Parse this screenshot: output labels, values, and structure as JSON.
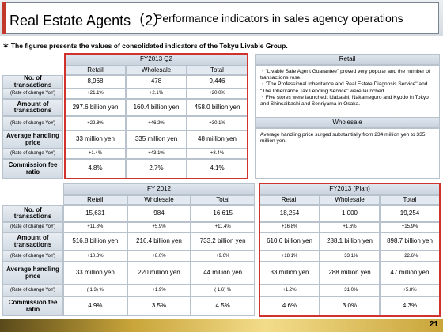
{
  "header": {
    "title": "Real Estate Agents（2）",
    "subtitle": "Performance indicators in sales agency operations"
  },
  "note": "＊ The figures presents the values of consolidated indicators of the Tokyu Livable Group.",
  "row_labels": [
    "No. of transactions",
    "(Rate of change YoY)",
    "Amount of transactions",
    "(Rate of change YoY)",
    "Average handling price",
    "(Rate of change YoY)",
    "Commission fee ratio"
  ],
  "tables": [
    {
      "title": "FY2013 Q2",
      "columns": [
        "Retail",
        "Wholesale",
        "Total"
      ],
      "rows": [
        [
          "8,968",
          "478",
          "9,446"
        ],
        [
          "+21.1%",
          "+2.1%",
          "+20.0%"
        ],
        [
          "297.6 billion yen",
          "160.4 billion yen",
          "458.0 billion yen"
        ],
        [
          "+22.8%",
          "+46.2%",
          "+30.1%"
        ],
        [
          "33 million yen",
          "335 million yen",
          "48 million yen"
        ],
        [
          "+1.4%",
          "+43.1%",
          "+8.4%"
        ],
        [
          "4.8%",
          "2.7%",
          "4.1%"
        ]
      ]
    },
    {
      "title": "FY 2012",
      "columns": [
        "Retail",
        "Wholesale",
        "Total"
      ],
      "rows": [
        [
          "15,631",
          "984",
          "16,615"
        ],
        [
          "+11.8%",
          "+5.9%",
          "+11.4%"
        ],
        [
          "516.8 billion yen",
          "216.4 billion yen",
          "733.2 billion yen"
        ],
        [
          "+10.3%",
          "+8.0%",
          "+9.6%"
        ],
        [
          "33 million yen",
          "220 million yen",
          "44 million yen"
        ],
        [
          "( 1.3) %",
          "+1.9%",
          "( 1.6) %"
        ],
        [
          "4.9%",
          "3.5%",
          "4.5%"
        ]
      ]
    },
    {
      "title": "FY2013 (Plan)",
      "columns": [
        "Retail",
        "Wholesale",
        "Total"
      ],
      "rows": [
        [
          "18,254",
          "1,000",
          "19,254"
        ],
        [
          "+16.8%",
          "+1.6%",
          "+15.9%"
        ],
        [
          "610.6 billion yen",
          "288.1 billion yen",
          "898.7 billion yen"
        ],
        [
          "+18.1%",
          "+33.1%",
          "+22.6%"
        ],
        [
          "33 million yen",
          "288 million yen",
          "47 million yen"
        ],
        [
          "+1.2%",
          "+31.0%",
          "+5.8%"
        ],
        [
          "4.6%",
          "3.0%",
          "4.3%"
        ]
      ]
    }
  ],
  "comments": [
    {
      "title": "Retail",
      "items": [
        "・\"Livable Safe Agent Guarantee\" proved very popular and the number of transactions rose.",
        "・\"The Professional Inheritance and Real Estate Diagnosis Service\" and \"The Inheritance Tax Lending Service\" were launched.",
        "・Five stores were launched: Idabashi, Nakameguro and Kyodo in Tokyo and Shinsaibashi and Senriyama in Osaka."
      ]
    },
    {
      "title": "Wholesale",
      "items": [
        "Average handling price surged substantially from 234 million yen to 335 million yen."
      ]
    }
  ],
  "page_number": "21"
}
